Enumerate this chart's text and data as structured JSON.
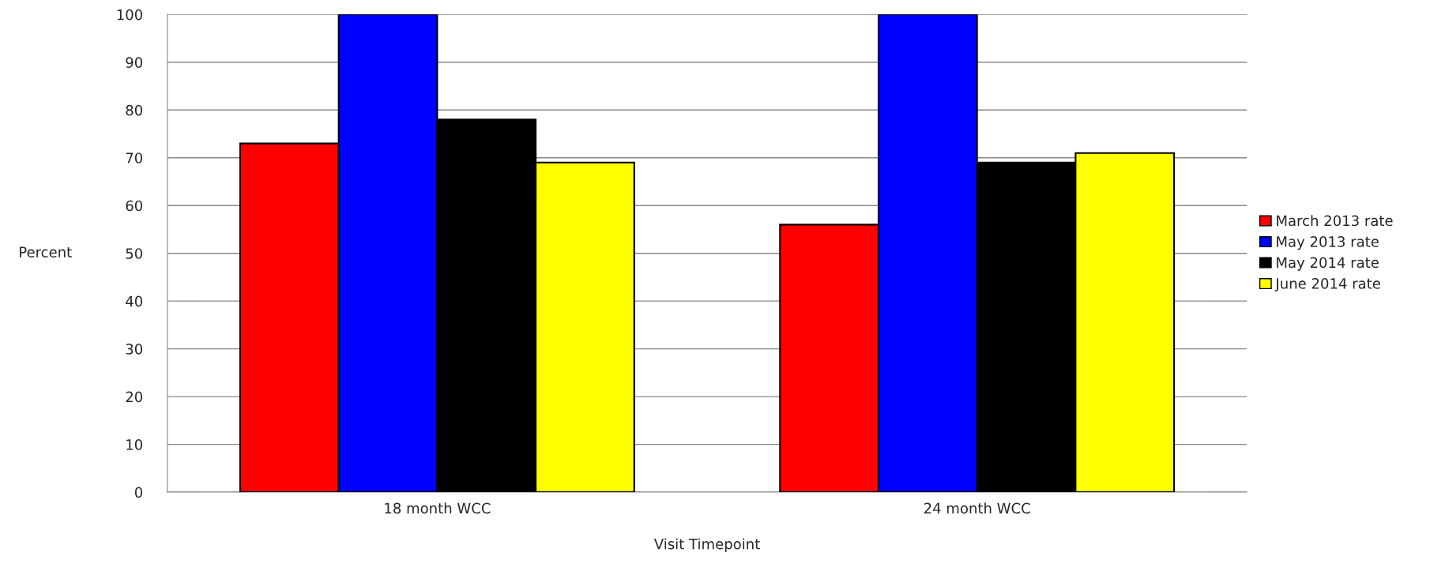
{
  "chart_data": {
    "type": "bar",
    "xlabel": "Visit Timepoint",
    "ylabel": "Percent",
    "categories": [
      "18 month WCC",
      "24 month WCC"
    ],
    "series": [
      {
        "name": "March 2013 rate",
        "color": "#ff0000",
        "values": [
          73,
          56
        ]
      },
      {
        "name": "May 2013 rate",
        "color": "#0000ff",
        "values": [
          100,
          100
        ]
      },
      {
        "name": "May 2014 rate",
        "color": "#000000",
        "values": [
          78,
          69
        ]
      },
      {
        "name": "June 2014 rate",
        "color": "#ffff00",
        "values": [
          69,
          71
        ]
      }
    ],
    "ylim": [
      0,
      100
    ],
    "yticks": [
      0,
      10,
      20,
      30,
      40,
      50,
      60,
      70,
      80,
      90,
      100
    ],
    "grid": "y",
    "legend": "right"
  }
}
